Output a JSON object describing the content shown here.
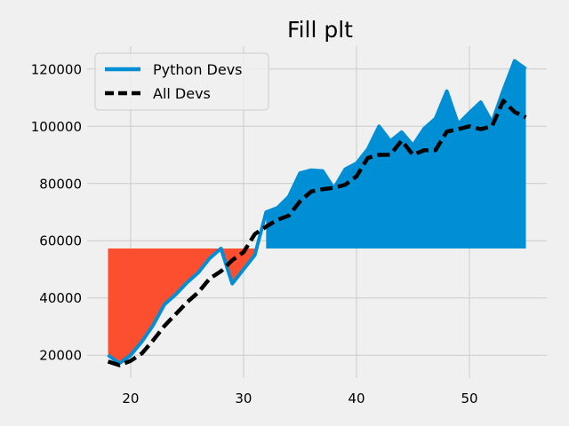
{
  "chart_data": {
    "type": "line",
    "title": "Fill plt",
    "xlabel": "",
    "ylabel": "",
    "xlim": [
      16.15,
      56.85
    ],
    "ylim": [
      12000,
      128000
    ],
    "xticks": [
      20,
      30,
      40,
      50
    ],
    "yticks": [
      20000,
      40000,
      60000,
      80000,
      100000,
      120000
    ],
    "xtick_labels": [
      "20",
      "30",
      "40",
      "50"
    ],
    "ytick_labels": [
      "20000",
      "40000",
      "60000",
      "80000",
      "100000",
      "120000"
    ],
    "grid": true,
    "legend_position": "top-left",
    "fill_baseline": 57287,
    "colors": {
      "python_devs": "#008fd5",
      "all_devs": "#000000",
      "fill_above": "#008fd5",
      "fill_below": "#fc4f30",
      "background": "#f0f0f0",
      "grid": "#cbcbcb"
    },
    "x": [
      18,
      19,
      20,
      21,
      22,
      23,
      24,
      25,
      26,
      27,
      28,
      29,
      30,
      31,
      32,
      33,
      34,
      35,
      36,
      37,
      38,
      39,
      40,
      41,
      42,
      43,
      44,
      45,
      46,
      47,
      48,
      49,
      50,
      51,
      52,
      53,
      54,
      55
    ],
    "series": [
      {
        "name": "Python Devs",
        "style": "solid",
        "values": [
          20046,
          17100,
          20000,
          24744,
          30500,
          37732,
          41247,
          45372,
          48876,
          53850,
          57287,
          45000,
          50000,
          55000,
          70000,
          71496,
          75370,
          83640,
          84666,
          84392,
          78254,
          85000,
          87038,
          91991,
          100000,
          94796,
          97962,
          93302,
          99240,
          102736,
          112285,
          100771,
          104708,
          108423,
          101407,
          112542,
          122870,
          120000
        ]
      },
      {
        "name": "All Devs",
        "style": "dashed",
        "values": [
          17784,
          16500,
          18012,
          20628,
          25206,
          30252,
          34368,
          38496,
          42000,
          46752,
          49320,
          53200,
          56000,
          62316,
          64928,
          67317,
          68748,
          73752,
          77232,
          78000,
          78508,
          79536,
          82488,
          88935,
          90000,
          90056,
          95000,
          90000,
          91633,
          91660,
          98150,
          98964,
          100000,
          98988,
          100000,
          108923,
          105000,
          103117
        ]
      }
    ]
  }
}
